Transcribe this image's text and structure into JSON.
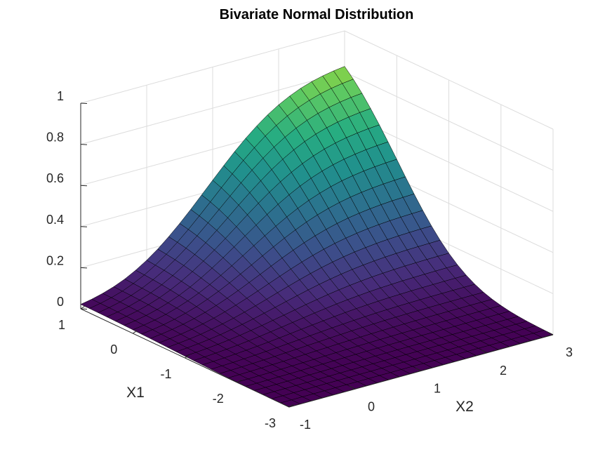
{
  "chart_data": {
    "type": "surface",
    "title": "Bivariate Normal Distribution",
    "xlabel": "X1",
    "ylabel": "X2",
    "zlabel": "",
    "x1_range": [
      -3,
      1
    ],
    "x2_range": [
      -1,
      3
    ],
    "z_range": [
      0,
      1
    ],
    "x1_ticks": [
      {
        "v": 1,
        "label": "1"
      },
      {
        "v": 0,
        "label": "0"
      },
      {
        "v": -1,
        "label": "-1"
      },
      {
        "v": -2,
        "label": "-2"
      },
      {
        "v": -3,
        "label": "-3"
      }
    ],
    "x2_ticks": [
      {
        "v": -1,
        "label": "-1"
      },
      {
        "v": 0,
        "label": "0"
      },
      {
        "v": 1,
        "label": "1"
      },
      {
        "v": 2,
        "label": "2"
      },
      {
        "v": 3,
        "label": "3"
      }
    ],
    "z_ticks": [
      {
        "v": 0,
        "label": "0"
      },
      {
        "v": 0.2,
        "label": "0.2"
      },
      {
        "v": 0.4,
        "label": "0.4"
      },
      {
        "v": 0.6,
        "label": "0.6"
      },
      {
        "v": 0.8,
        "label": "0.8"
      },
      {
        "v": 1,
        "label": "1"
      }
    ],
    "surface_function": "bivariate normal cumulative distribution, mean [0, 1], correlation 0.3",
    "grid_points_per_axis": 25,
    "colormap": "viridis",
    "colormap_stops": [
      "#440154",
      "#472c7a",
      "#3b518b",
      "#2c718e",
      "#21908d",
      "#27ad81",
      "#5cc863",
      "#aadc32",
      "#fde725"
    ],
    "edge_color": "#000000",
    "grid": true
  }
}
